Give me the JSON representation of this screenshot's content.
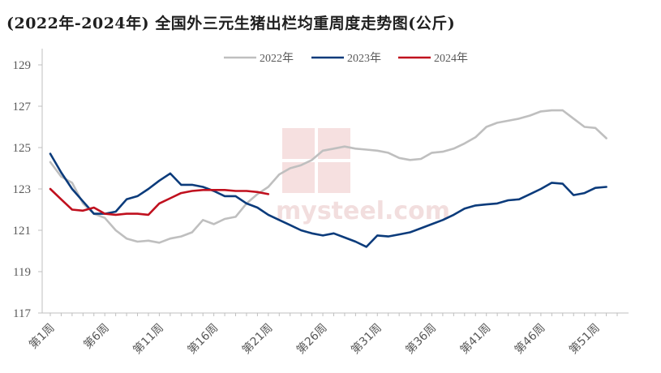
{
  "chart_data": {
    "type": "line",
    "title": "(2022年-2024年) 全国外三元生猪出栏均重周度走势图(公斤)",
    "xlabel": "",
    "ylabel": "",
    "ylim": [
      117,
      130
    ],
    "yticks": [
      117,
      119,
      121,
      123,
      125,
      127,
      129
    ],
    "x_tick_labels": [
      "第1周",
      "第6周",
      "第11周",
      "第16周",
      "第21周",
      "第26周",
      "第31周",
      "第36周",
      "第41周",
      "第46周",
      "第51周"
    ],
    "x_tick_weeks": [
      1,
      6,
      11,
      16,
      21,
      26,
      31,
      36,
      41,
      46,
      51
    ],
    "x_range": [
      1,
      53
    ],
    "grid": false,
    "legend_position": "top",
    "watermark": "mysteel.com",
    "series": [
      {
        "name": "2022年",
        "color": "#bfbfbf",
        "x": [
          1,
          2,
          3,
          4,
          5,
          6,
          7,
          8,
          9,
          10,
          11,
          12,
          13,
          14,
          15,
          16,
          17,
          18,
          19,
          20,
          21,
          22,
          23,
          24,
          25,
          26,
          27,
          28,
          29,
          30,
          31,
          32,
          33,
          34,
          35,
          36,
          37,
          38,
          39,
          40,
          41,
          42,
          43,
          44,
          45,
          46,
          47,
          48,
          49,
          50,
          51,
          52,
          53
        ],
        "values": [
          124.3,
          123.6,
          123.3,
          122.3,
          121.8,
          121.6,
          121.0,
          120.6,
          120.45,
          120.5,
          120.4,
          120.6,
          120.7,
          120.9,
          121.5,
          121.3,
          121.55,
          121.65,
          122.3,
          122.75,
          123.1,
          123.7,
          124.0,
          124.15,
          124.4,
          124.85,
          124.95,
          125.05,
          124.95,
          124.9,
          124.85,
          124.75,
          124.5,
          124.4,
          124.45,
          124.75,
          124.8,
          124.95,
          125.2,
          125.5,
          126.0,
          126.2,
          126.3,
          126.4,
          126.55,
          126.75,
          126.8,
          126.8,
          126.4,
          126.0,
          125.95,
          125.45,
          null
        ]
      },
      {
        "name": "2023年",
        "color": "#0b3b7b",
        "x": [
          1,
          2,
          3,
          4,
          5,
          6,
          7,
          8,
          9,
          10,
          11,
          12,
          13,
          14,
          15,
          16,
          17,
          18,
          19,
          20,
          21,
          22,
          23,
          24,
          25,
          26,
          27,
          28,
          29,
          30,
          31,
          32,
          33,
          34,
          35,
          36,
          37,
          38,
          39,
          40,
          41,
          42,
          43,
          44,
          45,
          46,
          47,
          48,
          49,
          50,
          51,
          52,
          53
        ],
        "values": [
          124.7,
          123.8,
          123.0,
          122.4,
          121.8,
          121.8,
          121.9,
          122.5,
          122.65,
          123.0,
          123.4,
          123.75,
          123.2,
          123.2,
          123.1,
          122.9,
          122.65,
          122.65,
          122.3,
          122.1,
          121.75,
          121.5,
          121.25,
          121.0,
          120.85,
          120.75,
          120.85,
          120.65,
          120.45,
          120.2,
          120.75,
          120.7,
          120.8,
          120.9,
          121.1,
          121.3,
          121.5,
          121.75,
          122.05,
          122.2,
          122.25,
          122.3,
          122.45,
          122.5,
          122.75,
          123.0,
          123.3,
          123.25,
          122.7,
          122.8,
          123.05,
          123.1,
          null
        ]
      },
      {
        "name": "2024年",
        "color": "#c0101e",
        "x": [
          1,
          2,
          3,
          4,
          5,
          6,
          7,
          8,
          9,
          10,
          11,
          12,
          13,
          14,
          15,
          16,
          17,
          18,
          19,
          20,
          21
        ],
        "values": [
          123.0,
          122.5,
          122.0,
          121.95,
          122.1,
          121.8,
          121.75,
          121.8,
          121.8,
          121.75,
          122.3,
          122.55,
          122.8,
          122.9,
          122.95,
          122.95,
          122.95,
          122.9,
          122.9,
          122.85,
          122.75
        ]
      }
    ]
  }
}
